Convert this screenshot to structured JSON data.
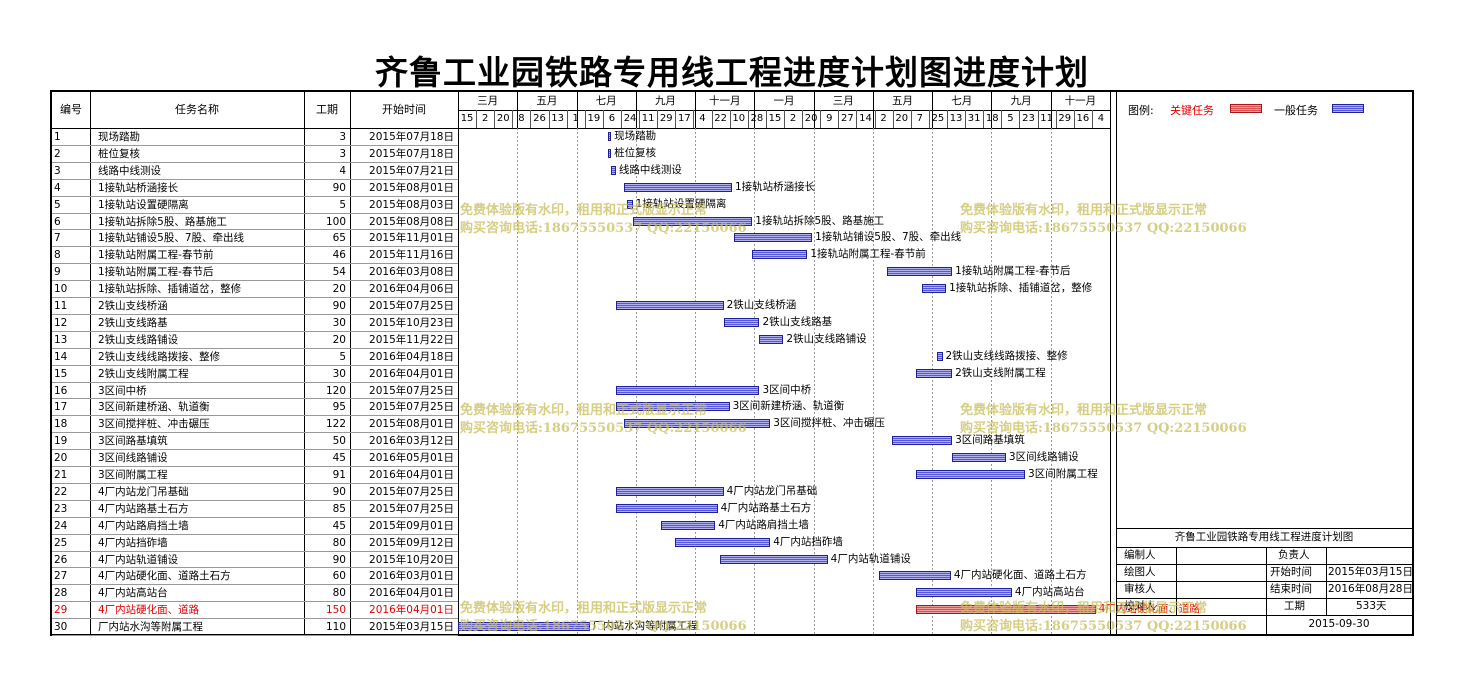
{
  "title": "齐鲁工业园铁路专用线工程进度计划图进度计划",
  "headers": {
    "id": "编号",
    "name": "任务名称",
    "duration": "工期",
    "start": "开始时间"
  },
  "chart_data": {
    "type": "gantt",
    "tasks": [
      {
        "id": "1",
        "name": "现场踏勘",
        "duration": 3,
        "start": "2015年07月18日",
        "critical": false
      },
      {
        "id": "2",
        "name": "桩位复核",
        "duration": 3,
        "start": "2015年07月18日",
        "critical": false
      },
      {
        "id": "3",
        "name": "线路中线测设",
        "duration": 4,
        "start": "2015年07月21日",
        "critical": false
      },
      {
        "id": "4",
        "name": "1接轨站桥涵接长",
        "duration": 90,
        "start": "2015年08月01日",
        "critical": false
      },
      {
        "id": "5",
        "name": "1接轨站设置硬隔离",
        "duration": 5,
        "start": "2015年08月03日",
        "critical": false
      },
      {
        "id": "6",
        "name": "1接轨站拆除5股、路基施工",
        "duration": 100,
        "start": "2015年08月08日",
        "critical": false
      },
      {
        "id": "7",
        "name": "1接轨站铺设5股、7股、牵出线",
        "duration": 65,
        "start": "2015年11月01日",
        "critical": false
      },
      {
        "id": "8",
        "name": "1接轨站附属工程-春节前",
        "duration": 46,
        "start": "2015年11月16日",
        "critical": false
      },
      {
        "id": "9",
        "name": "1接轨站附属工程-春节后",
        "duration": 54,
        "start": "2016年03月08日",
        "critical": false
      },
      {
        "id": "10",
        "name": "1接轨站拆除、插铺道岔，整修",
        "duration": 20,
        "start": "2016年04月06日",
        "critical": false
      },
      {
        "id": "11",
        "name": "2铁山支线桥涵",
        "duration": 90,
        "start": "2015年07月25日",
        "critical": false
      },
      {
        "id": "12",
        "name": "2铁山支线路基",
        "duration": 30,
        "start": "2015年10月23日",
        "critical": false
      },
      {
        "id": "13",
        "name": "2铁山支线路铺设",
        "duration": 20,
        "start": "2015年11月22日",
        "critical": false
      },
      {
        "id": "14",
        "name": "2铁山支线线路拨接、整修",
        "duration": 5,
        "start": "2016年04月18日",
        "critical": false
      },
      {
        "id": "15",
        "name": "2铁山支线附属工程",
        "duration": 30,
        "start": "2016年04月01日",
        "critical": false
      },
      {
        "id": "16",
        "name": "3区间中桥",
        "duration": 120,
        "start": "2015年07月25日",
        "critical": false
      },
      {
        "id": "17",
        "name": "3区间新建桥涵、轨道衡",
        "duration": 95,
        "start": "2015年07月25日",
        "critical": false
      },
      {
        "id": "18",
        "name": "3区间搅拌桩、冲击碾压",
        "duration": 122,
        "start": "2015年08月01日",
        "critical": false
      },
      {
        "id": "19",
        "name": "3区间路基填筑",
        "duration": 50,
        "start": "2016年03月12日",
        "critical": false
      },
      {
        "id": "20",
        "name": "3区间线路铺设",
        "duration": 45,
        "start": "2016年05月01日",
        "critical": false
      },
      {
        "id": "21",
        "name": "3区间附属工程",
        "duration": 91,
        "start": "2016年04月01日",
        "critical": false
      },
      {
        "id": "22",
        "name": "4厂内站龙门吊基础",
        "duration": 90,
        "start": "2015年07月25日",
        "critical": false
      },
      {
        "id": "23",
        "name": "4厂内站路基土石方",
        "duration": 85,
        "start": "2015年07月25日",
        "critical": false
      },
      {
        "id": "24",
        "name": "4厂内站路肩挡土墙",
        "duration": 45,
        "start": "2015年09月01日",
        "critical": false
      },
      {
        "id": "25",
        "name": "4厂内站挡砟墙",
        "duration": 80,
        "start": "2015年09月12日",
        "critical": false
      },
      {
        "id": "26",
        "name": "4厂内站轨道铺设",
        "duration": 90,
        "start": "2015年10月20日",
        "critical": false
      },
      {
        "id": "27",
        "name": "4厂内站硬化面、道路土石方",
        "duration": 60,
        "start": "2016年03月01日",
        "critical": false
      },
      {
        "id": "28",
        "name": "4厂内站高站台",
        "duration": 80,
        "start": "2016年04月01日",
        "critical": false
      },
      {
        "id": "29",
        "name": "4厂内站硬化面、道路",
        "duration": 150,
        "start": "2016年04月01日",
        "critical": true
      },
      {
        "id": "30",
        "name": "厂内站水沟等附属工程",
        "duration": 110,
        "start": "2015年03月15日",
        "critical": false
      }
    ],
    "months": [
      "三月",
      "五月",
      "七月",
      "九月",
      "十一月",
      "一月",
      "三月",
      "五月",
      "七月",
      "九月",
      "十一月"
    ],
    "ticks": [
      "15",
      "2",
      "20",
      "8",
      "26",
      "13",
      "1",
      "19",
      "6",
      "24",
      "11",
      "29",
      "17",
      "4",
      "22",
      "10",
      "28",
      "15",
      "2",
      "20",
      "9",
      "27",
      "14",
      "2",
      "20",
      "7",
      "25",
      "13",
      "31",
      "18",
      "5",
      "23",
      "11",
      "29",
      "16",
      "4"
    ]
  },
  "legend": {
    "label": "图例:",
    "critical": "关键任务",
    "normal": "一般任务",
    "critical_color": "#e05050",
    "normal_color": "#5555dd"
  },
  "info": {
    "title": "齐鲁工业园铁路专用线工程进度计划图",
    "maker_label": "编制人",
    "owner_label": "负责人",
    "drawer_label": "绘图人",
    "start_label": "开始时间",
    "start_value": "2015年03月15日",
    "reviewer_label": "审核人",
    "end_label": "结束时间",
    "end_value": "2016年08月28日",
    "approver_label": "校对人",
    "period_label": "工期",
    "period_value": "533天",
    "date": "2015-09-30"
  },
  "watermark": {
    "line1": "免费体验版有水印，租用和正式版显示正常",
    "line2": "购买咨询电话:18675550537 QQ:22150066"
  }
}
